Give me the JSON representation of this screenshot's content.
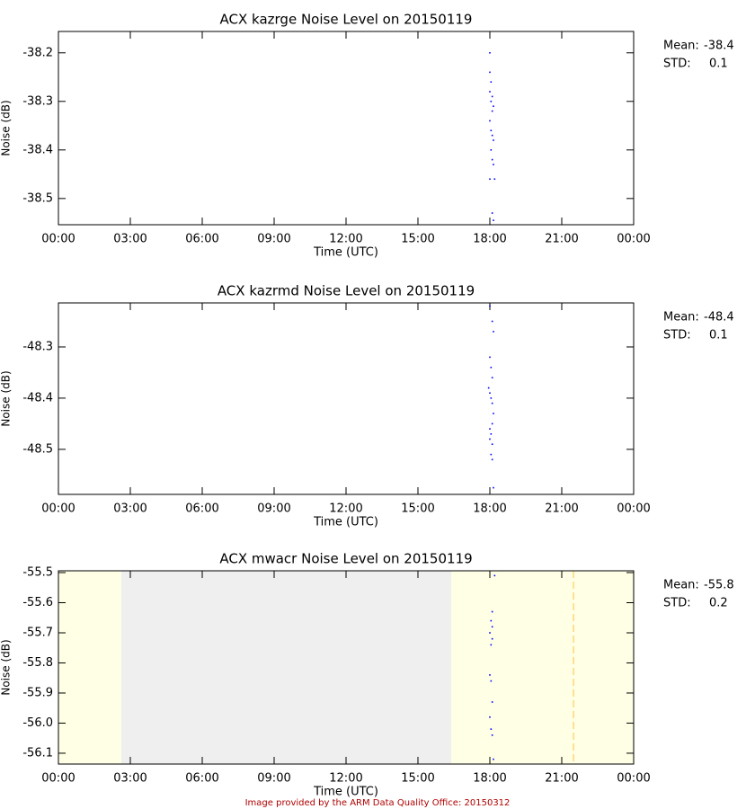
{
  "chart_data": [
    {
      "type": "scatter",
      "title": "ACX kazrge Noise Level on 20150119",
      "xlabel": "Time (UTC)",
      "ylabel": "Noise (dB)",
      "mean_label": "Mean:",
      "mean": -38.4,
      "std_label": "STD:",
      "std": 0.1,
      "color": "#0000ff",
      "xlim": [
        0,
        24
      ],
      "ylim": [
        -38.554,
        -38.156
      ],
      "xticks": [
        {
          "value": 0,
          "label": "00:00"
        },
        {
          "value": 3,
          "label": "03:00"
        },
        {
          "value": 6,
          "label": "06:00"
        },
        {
          "value": 9,
          "label": "09:00"
        },
        {
          "value": 12,
          "label": "12:00"
        },
        {
          "value": 15,
          "label": "15:00"
        },
        {
          "value": 18,
          "label": "18:00"
        },
        {
          "value": 21,
          "label": "21:00"
        },
        {
          "value": 24,
          "label": "00:00"
        }
      ],
      "yticks": [
        -38.2,
        -38.3,
        -38.4,
        -38.5
      ],
      "x": [
        18.0,
        18.0,
        18.05,
        18.0,
        18.1,
        18.05,
        18.15,
        18.1,
        18.0,
        18.05,
        18.1,
        18.15,
        18.05,
        18.1,
        18.15,
        18.0,
        18.2,
        18.1,
        18.15
      ],
      "values": [
        -38.2,
        -38.24,
        -38.26,
        -38.28,
        -38.29,
        -38.3,
        -38.31,
        -38.32,
        -38.34,
        -38.36,
        -38.37,
        -38.38,
        -38.4,
        -38.42,
        -38.43,
        -38.46,
        -38.46,
        -38.53,
        -38.545
      ]
    },
    {
      "type": "scatter",
      "title": "ACX kazrmd Noise Level on 20150119",
      "xlabel": "Time (UTC)",
      "ylabel": "Noise (dB)",
      "mean_label": "Mean:",
      "mean": -48.4,
      "std_label": "STD:",
      "std": 0.1,
      "color": "#0000ff",
      "xlim": [
        0,
        24
      ],
      "ylim": [
        -48.588,
        -48.214
      ],
      "xticks": [
        {
          "value": 0,
          "label": "00:00"
        },
        {
          "value": 3,
          "label": "03:00"
        },
        {
          "value": 6,
          "label": "06:00"
        },
        {
          "value": 9,
          "label": "09:00"
        },
        {
          "value": 12,
          "label": "12:00"
        },
        {
          "value": 15,
          "label": "15:00"
        },
        {
          "value": 18,
          "label": "18:00"
        },
        {
          "value": 21,
          "label": "21:00"
        },
        {
          "value": 24,
          "label": "00:00"
        }
      ],
      "yticks": [
        -48.3,
        -48.4,
        -48.5
      ],
      "x": [
        18.0,
        18.1,
        18.15,
        18.0,
        18.05,
        18.1,
        17.95,
        18.0,
        18.05,
        18.1,
        18.15,
        18.1,
        18.0,
        18.05,
        18.0,
        18.1,
        18.05,
        18.1,
        18.15
      ],
      "values": [
        -48.22,
        -48.25,
        -48.27,
        -48.32,
        -48.34,
        -48.36,
        -48.38,
        -48.39,
        -48.4,
        -48.41,
        -48.43,
        -48.45,
        -48.46,
        -48.47,
        -48.48,
        -48.49,
        -48.51,
        -48.52,
        -48.575
      ]
    },
    {
      "type": "scatter",
      "title": "ACX mwacr Noise Level on 20150119",
      "xlabel": "Time (UTC)",
      "ylabel": "Noise (dB)",
      "mean_label": "Mean:",
      "mean": -55.8,
      "std_label": "STD:",
      "std": 0.2,
      "color": "#0000ff",
      "background": "#ffffe6",
      "region": {
        "start": 2.63,
        "end": 16.39,
        "color": "#efefef"
      },
      "vline": {
        "x": 21.49,
        "color": "#ffc040"
      },
      "xlim": [
        0,
        24
      ],
      "ylim": [
        -56.136,
        -55.494
      ],
      "xticks": [
        {
          "value": 0,
          "label": "00:00"
        },
        {
          "value": 3,
          "label": "03:00"
        },
        {
          "value": 6,
          "label": "06:00"
        },
        {
          "value": 9,
          "label": "09:00"
        },
        {
          "value": 12,
          "label": "12:00"
        },
        {
          "value": 15,
          "label": "15:00"
        },
        {
          "value": 18,
          "label": "18:00"
        },
        {
          "value": 21,
          "label": "21:00"
        },
        {
          "value": 24,
          "label": "00:00"
        }
      ],
      "yticks": [
        -55.5,
        -55.6,
        -55.7,
        -55.8,
        -55.9,
        {
          "value": -56,
          "label": "-56.0"
        },
        -56.1
      ],
      "x": [
        18.2,
        18.1,
        18.05,
        18.1,
        18.0,
        18.1,
        18.05,
        18.0,
        18.05,
        18.1,
        18.0,
        18.05,
        18.1,
        18.15
      ],
      "values": [
        -55.51,
        -55.63,
        -55.66,
        -55.68,
        -55.7,
        -55.72,
        -55.74,
        -55.84,
        -55.86,
        -55.93,
        -55.98,
        -56.02,
        -56.04,
        -56.12
      ]
    }
  ],
  "footer": "Image provided by the ARM Data Quality Office: 20150312"
}
